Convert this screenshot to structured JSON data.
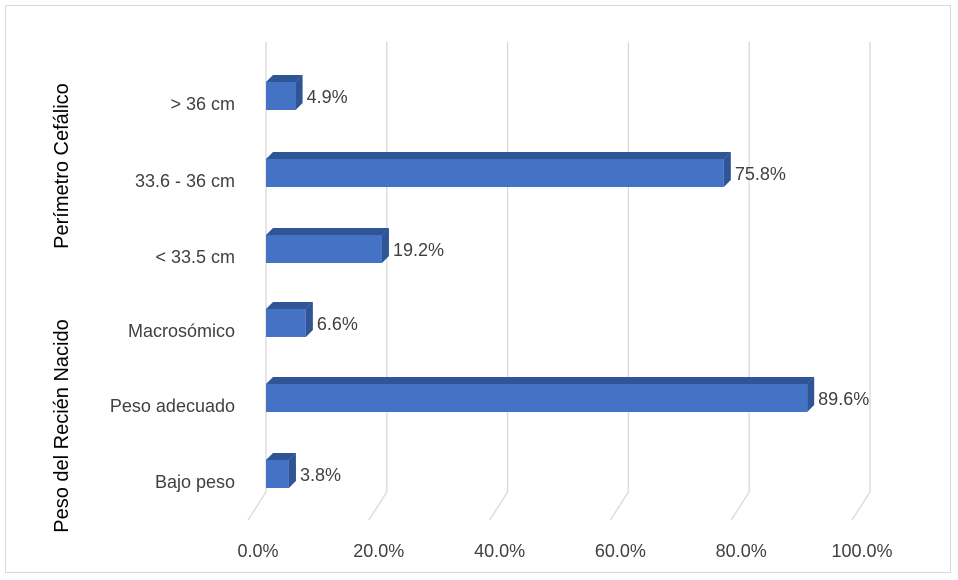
{
  "chart_data": {
    "type": "bar",
    "orientation": "horizontal",
    "style": "3d",
    "groups": [
      {
        "name": "Perímetro Cefálico",
        "categories": [
          "> 36  cm",
          "33.6 - 36  cm",
          "< 33.5  cm"
        ]
      },
      {
        "name": "Peso del Recién Nacido",
        "categories": [
          "Macrosómico",
          "Peso adecuado",
          "Bajo peso"
        ]
      }
    ],
    "categories": [
      "> 36  cm",
      "33.6 - 36  cm",
      "< 33.5  cm",
      "Macrosómico",
      "Peso adecuado",
      "Bajo peso"
    ],
    "values": [
      4.9,
      75.8,
      19.2,
      6.6,
      89.6,
      3.8
    ],
    "value_labels": [
      "4.9%",
      "75.8%",
      "19.2%",
      "6.6%",
      "89.6%",
      "3.8%"
    ],
    "xlim": [
      0,
      100
    ],
    "x_ticks": [
      "0.0%",
      "20.0%",
      "40.0%",
      "60.0%",
      "80.0%",
      "100.0%"
    ],
    "grid": true,
    "legend": "none",
    "colors": {
      "bar_front": "#4472c4",
      "bar_top": "#2f5597",
      "bar_side": "#2f5597",
      "grid": "#d9d9d9"
    }
  }
}
